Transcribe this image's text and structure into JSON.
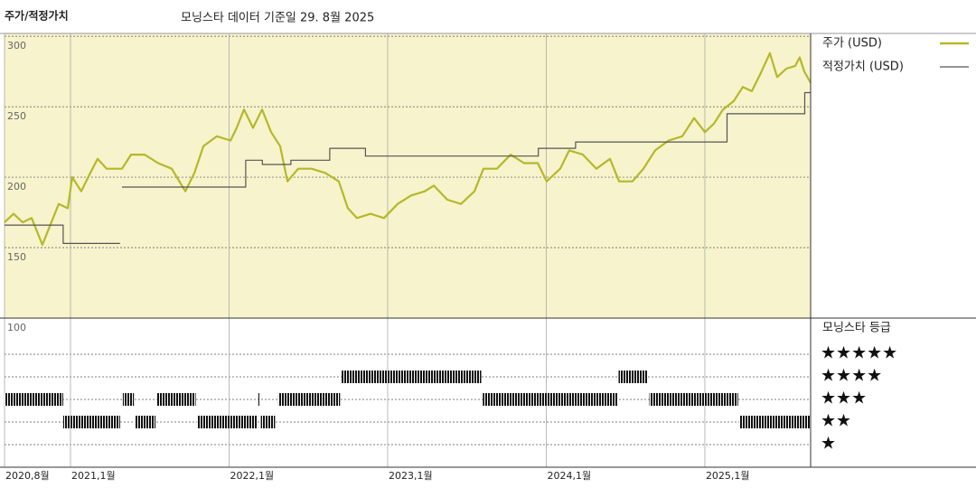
{
  "chart_data": [
    {
      "type": "line",
      "title": "주가/적정가치",
      "subtitle": "모닝스타 데이터 기준일 29. 8월 2025",
      "xlim": [
        2020.584,
        2025.667
      ],
      "ylim": [
        100,
        302
      ],
      "yticks": [
        100,
        150,
        200,
        250,
        300
      ],
      "background": "#f7f3cc",
      "series": [
        {
          "name": "주가 (USD)",
          "color": "#b5b82a",
          "x": [
            2020.584,
            2020.641,
            2020.698,
            2020.755,
            2020.823,
            2020.869,
            2020.926,
            2020.983,
            2021.011,
            2021.068,
            2021.125,
            2021.171,
            2021.228,
            2021.325,
            2021.382,
            2021.467,
            2021.553,
            2021.638,
            2021.724,
            2021.781,
            2021.838,
            2021.923,
            2022.009,
            2022.048,
            2022.094,
            2022.151,
            2022.208,
            2022.265,
            2022.322,
            2022.368,
            2022.436,
            2022.521,
            2022.607,
            2022.692,
            2022.749,
            2022.806,
            2022.892,
            2022.977,
            2023.063,
            2023.148,
            2023.234,
            2023.291,
            2023.376,
            2023.462,
            2023.547,
            2023.604,
            2023.689,
            2023.775,
            2023.86,
            2023.946,
            2024.003,
            2024.088,
            2024.145,
            2024.231,
            2024.316,
            2024.402,
            2024.459,
            2024.544,
            2024.613,
            2024.687,
            2024.772,
            2024.858,
            2024.932,
            2025.0,
            2025.057,
            2025.114,
            2025.182,
            2025.239,
            2025.296,
            2025.353,
            2025.41,
            2025.456,
            2025.513,
            2025.57,
            2025.598,
            2025.627,
            2025.667
          ],
          "values": [
            168,
            174,
            168,
            171,
            152,
            165,
            181,
            178,
            200,
            190,
            203,
            213,
            206,
            206,
            216,
            216,
            210,
            206,
            190,
            203,
            222,
            229,
            226,
            235,
            248,
            235,
            248,
            232,
            222,
            197,
            206,
            206,
            203,
            197,
            178,
            171,
            174,
            171,
            181,
            187,
            190,
            194,
            184,
            181,
            190,
            206,
            206,
            216,
            210,
            210,
            197,
            206,
            219,
            216,
            206,
            213,
            197,
            197,
            206,
            219,
            226,
            229,
            242,
            232,
            238,
            248,
            254,
            264,
            261,
            274,
            288,
            271,
            277,
            279,
            285,
            275,
            267
          ]
        },
        {
          "name": "적정가치 (USD)",
          "color": "#555555",
          "x": [
            2020.584,
            2020.954,
            2020.954,
            2021.313,
            2021.32,
            2021.325,
            2022.105,
            2022.105,
            2022.21,
            2022.21,
            2022.39,
            2022.39,
            2022.635,
            2022.635,
            2022.86,
            2022.86,
            2023.95,
            2023.95,
            2024.185,
            2024.185,
            2025.14,
            2025.14,
            2025.63,
            2025.63,
            2025.667
          ],
          "values": [
            166,
            166,
            153,
            153,
            null,
            193,
            193,
            212,
            212,
            209,
            209,
            212,
            212,
            220.5,
            220.5,
            215,
            215,
            220.5,
            220.5,
            225,
            225,
            245,
            245,
            260,
            260
          ]
        }
      ]
    },
    {
      "type": "rating",
      "title": "모닝스타 등급",
      "xlim": [
        2020.584,
        2025.667
      ],
      "ylim": [
        0,
        6.6
      ],
      "yticks": [
        {
          "value": 5,
          "label": "★★★★★"
        },
        {
          "value": 4,
          "label": "★★★★"
        },
        {
          "value": 3,
          "label": "★★★"
        },
        {
          "value": 2,
          "label": "★★"
        },
        {
          "value": 1,
          "label": "★"
        }
      ],
      "xticks": [
        {
          "value": 2020.584,
          "label": "2020,8월"
        },
        {
          "value": 2021,
          "label": "2021,1월"
        },
        {
          "value": 2022,
          "label": "2022,1월"
        },
        {
          "value": 2023,
          "label": "2023,1월"
        },
        {
          "value": 2024,
          "label": "2024,1월"
        },
        {
          "value": 2025,
          "label": "2025,1월"
        }
      ],
      "segments": [
        {
          "start": 2020.584,
          "end": 2020.954,
          "stars": 3
        },
        {
          "start": 2020.954,
          "end": 2021.313,
          "stars": 2
        },
        {
          "start": 2021.33,
          "end": 2021.4,
          "stars": 3
        },
        {
          "start": 2021.405,
          "end": 2021.536,
          "stars": 2
        },
        {
          "start": 2021.547,
          "end": 2021.79,
          "stars": 3
        },
        {
          "start": 2021.798,
          "end": 2022.18,
          "stars": 2
        },
        {
          "start": 2022.185,
          "end": 2022.197,
          "stars": 3
        },
        {
          "start": 2022.2,
          "end": 2022.29,
          "stars": 2
        },
        {
          "start": 2022.31,
          "end": 2022.7,
          "stars": 3
        },
        {
          "start": 2022.71,
          "end": 2023.59,
          "stars": 4
        },
        {
          "start": 2023.6,
          "end": 2024.45,
          "stars": 3
        },
        {
          "start": 2024.456,
          "end": 2024.64,
          "stars": 4
        },
        {
          "start": 2024.65,
          "end": 2025.21,
          "stars": 3
        },
        {
          "start": 2025.217,
          "end": 2025.667,
          "stars": 2
        }
      ]
    }
  ]
}
